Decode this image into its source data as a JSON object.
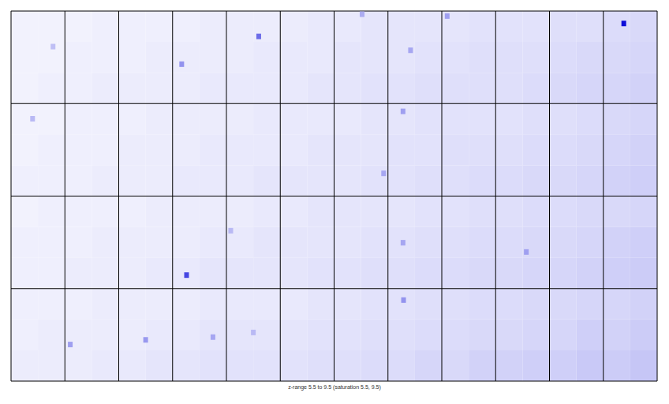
{
  "chart_data": {
    "type": "heatmap",
    "caption": "z-range 5.5 to 9.5 (saturation 5.5, 9.5)",
    "xlim": [
      0,
      12
    ],
    "ylim": [
      0,
      4
    ],
    "tick_labels": false,
    "color_range": [
      5.5,
      9.5
    ],
    "panels": [
      [
        [
          [
            5.7,
            5.7
          ],
          [
            5.7,
            5.7
          ],
          [
            5.7,
            5.75
          ]
        ],
        [
          [
            5.7,
            5.75
          ],
          [
            5.75,
            5.75
          ],
          [
            5.75,
            5.8
          ]
        ],
        [
          [
            5.75,
            5.75
          ],
          [
            5.75,
            5.8
          ],
          [
            5.8,
            5.8
          ]
        ],
        [
          [
            5.75,
            5.8
          ],
          [
            5.8,
            5.8
          ],
          [
            5.8,
            5.85
          ]
        ],
        [
          [
            5.8,
            5.8
          ],
          [
            5.8,
            5.85
          ],
          [
            5.85,
            5.85
          ]
        ],
        [
          [
            5.8,
            5.85
          ],
          [
            5.85,
            5.85
          ],
          [
            5.85,
            5.9
          ]
        ],
        [
          [
            5.85,
            5.9
          ],
          [
            5.9,
            5.9
          ],
          [
            5.9,
            5.95
          ]
        ],
        [
          [
            5.9,
            5.9
          ],
          [
            5.9,
            5.95
          ],
          [
            5.95,
            6.0
          ]
        ],
        [
          [
            5.9,
            5.95
          ],
          [
            5.95,
            6.0
          ],
          [
            6.0,
            6.0
          ]
        ],
        [
          [
            5.95,
            5.95
          ],
          [
            6.0,
            6.0
          ],
          [
            6.0,
            6.05
          ]
        ],
        [
          [
            6.0,
            6.0
          ],
          [
            6.05,
            6.1
          ],
          [
            6.1,
            6.15
          ]
        ],
        [
          [
            6.05,
            6.1
          ],
          [
            6.1,
            6.15
          ],
          [
            6.15,
            6.2
          ]
        ]
      ],
      [
        [
          [
            5.7,
            5.7
          ],
          [
            5.7,
            5.75
          ],
          [
            5.75,
            5.75
          ]
        ],
        [
          [
            5.75,
            5.75
          ],
          [
            5.75,
            5.75
          ],
          [
            5.75,
            5.8
          ]
        ],
        [
          [
            5.75,
            5.8
          ],
          [
            5.8,
            5.8
          ],
          [
            5.8,
            5.8
          ]
        ],
        [
          [
            5.8,
            5.8
          ],
          [
            5.8,
            5.85
          ],
          [
            5.85,
            5.85
          ]
        ],
        [
          [
            5.8,
            5.85
          ],
          [
            5.85,
            5.85
          ],
          [
            5.85,
            5.9
          ]
        ],
        [
          [
            5.85,
            5.85
          ],
          [
            5.85,
            5.9
          ],
          [
            5.9,
            5.9
          ]
        ],
        [
          [
            5.85,
            5.9
          ],
          [
            5.9,
            5.9
          ],
          [
            5.9,
            5.95
          ]
        ],
        [
          [
            5.9,
            5.95
          ],
          [
            5.95,
            5.95
          ],
          [
            5.95,
            6.0
          ]
        ],
        [
          [
            5.95,
            5.95
          ],
          [
            6.0,
            6.0
          ],
          [
            6.0,
            6.05
          ]
        ],
        [
          [
            5.95,
            6.0
          ],
          [
            6.0,
            6.05
          ],
          [
            6.05,
            6.1
          ]
        ],
        [
          [
            6.0,
            6.05
          ],
          [
            6.05,
            6.1
          ],
          [
            6.1,
            6.15
          ]
        ],
        [
          [
            6.1,
            6.15
          ],
          [
            6.15,
            6.2
          ],
          [
            6.2,
            6.25
          ]
        ]
      ],
      [
        [
          [
            5.7,
            5.75
          ],
          [
            5.75,
            5.75
          ],
          [
            5.75,
            5.75
          ]
        ],
        [
          [
            5.75,
            5.75
          ],
          [
            5.75,
            5.8
          ],
          [
            5.8,
            5.8
          ]
        ],
        [
          [
            5.75,
            5.8
          ],
          [
            5.8,
            5.8
          ],
          [
            5.8,
            5.85
          ]
        ],
        [
          [
            5.8,
            5.8
          ],
          [
            5.8,
            5.85
          ],
          [
            5.85,
            5.9
          ]
        ],
        [
          [
            5.8,
            5.85
          ],
          [
            5.85,
            5.9
          ],
          [
            5.9,
            5.9
          ]
        ],
        [
          [
            5.85,
            5.9
          ],
          [
            5.9,
            5.9
          ],
          [
            5.9,
            5.95
          ]
        ],
        [
          [
            5.9,
            5.9
          ],
          [
            5.9,
            5.95
          ],
          [
            5.95,
            6.0
          ]
        ],
        [
          [
            5.9,
            5.95
          ],
          [
            5.95,
            6.0
          ],
          [
            6.0,
            6.05
          ]
        ],
        [
          [
            5.95,
            6.0
          ],
          [
            6.0,
            6.05
          ],
          [
            6.05,
            6.1
          ]
        ],
        [
          [
            6.0,
            6.05
          ],
          [
            6.05,
            6.1
          ],
          [
            6.1,
            6.15
          ]
        ],
        [
          [
            6.05,
            6.1
          ],
          [
            6.1,
            6.15
          ],
          [
            6.15,
            6.2
          ]
        ],
        [
          [
            6.1,
            6.15
          ],
          [
            6.2,
            6.25
          ],
          [
            6.25,
            6.3
          ]
        ]
      ],
      [
        [
          [
            5.75,
            5.75
          ],
          [
            5.75,
            5.8
          ],
          [
            5.8,
            5.8
          ]
        ],
        [
          [
            5.75,
            5.8
          ],
          [
            5.8,
            5.8
          ],
          [
            5.8,
            5.85
          ]
        ],
        [
          [
            5.8,
            5.8
          ],
          [
            5.8,
            5.85
          ],
          [
            5.85,
            5.9
          ]
        ],
        [
          [
            5.8,
            5.85
          ],
          [
            5.85,
            5.9
          ],
          [
            5.9,
            5.95
          ]
        ],
        [
          [
            5.85,
            5.85
          ],
          [
            5.9,
            5.9
          ],
          [
            5.95,
            5.95
          ]
        ],
        [
          [
            5.85,
            5.9
          ],
          [
            5.9,
            5.95
          ],
          [
            5.95,
            6.0
          ]
        ],
        [
          [
            5.9,
            5.95
          ],
          [
            5.95,
            6.0
          ],
          [
            6.0,
            6.05
          ]
        ],
        [
          [
            5.95,
            6.0
          ],
          [
            6.0,
            6.05
          ],
          [
            6.05,
            6.15
          ]
        ],
        [
          [
            6.0,
            6.05
          ],
          [
            6.05,
            6.1
          ],
          [
            6.1,
            6.2
          ]
        ],
        [
          [
            6.05,
            6.1
          ],
          [
            6.1,
            6.15
          ],
          [
            6.2,
            6.25
          ]
        ],
        [
          [
            6.1,
            6.15
          ],
          [
            6.15,
            6.25
          ],
          [
            6.25,
            6.35
          ]
        ],
        [
          [
            6.15,
            6.2
          ],
          [
            6.2,
            6.3
          ],
          [
            6.3,
            6.4
          ]
        ]
      ]
    ],
    "spots": [
      {
        "x": 0.78,
        "y": 0.38,
        "z": 6.5
      },
      {
        "x": 3.17,
        "y": 0.57,
        "z": 7.2
      },
      {
        "x": 4.6,
        "y": 0.27,
        "z": 7.8
      },
      {
        "x": 6.52,
        "y": 0.03,
        "z": 6.8
      },
      {
        "x": 7.42,
        "y": 0.42,
        "z": 6.9
      },
      {
        "x": 8.1,
        "y": 0.05,
        "z": 7.0
      },
      {
        "x": 11.38,
        "y": 0.13,
        "z": 9.3
      },
      {
        "x": 0.4,
        "y": 1.16,
        "z": 6.6
      },
      {
        "x": 6.92,
        "y": 1.75,
        "z": 6.9
      },
      {
        "x": 7.28,
        "y": 1.08,
        "z": 7.0
      },
      {
        "x": 3.26,
        "y": 2.85,
        "z": 8.4
      },
      {
        "x": 7.28,
        "y": 2.5,
        "z": 6.9
      },
      {
        "x": 9.57,
        "y": 2.6,
        "z": 7.0
      },
      {
        "x": 4.08,
        "y": 2.37,
        "z": 6.6
      },
      {
        "x": 1.1,
        "y": 3.6,
        "z": 7.0
      },
      {
        "x": 2.5,
        "y": 3.55,
        "z": 7.1
      },
      {
        "x": 3.75,
        "y": 3.52,
        "z": 6.9
      },
      {
        "x": 4.5,
        "y": 3.47,
        "z": 6.6
      },
      {
        "x": 7.29,
        "y": 3.12,
        "z": 7.2
      }
    ]
  }
}
